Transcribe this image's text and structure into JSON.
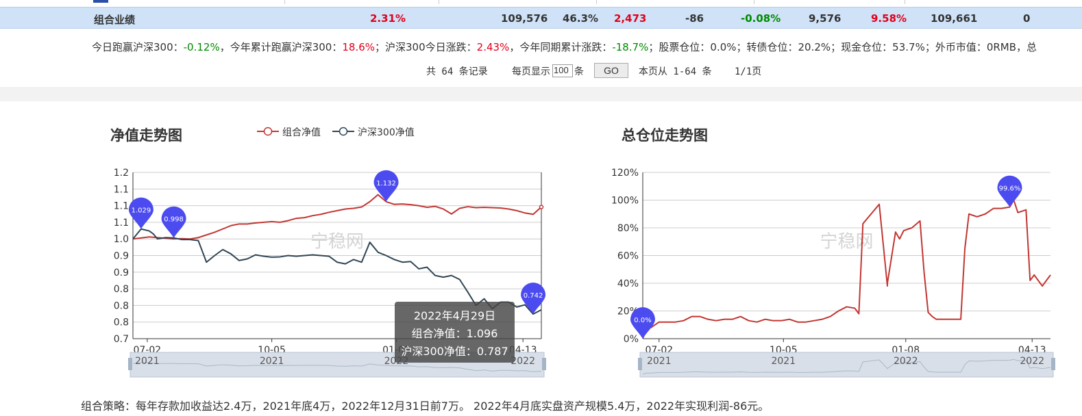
{
  "summary": {
    "label": "组合业绩",
    "cells": [
      {
        "text": "2.31%",
        "color": "red"
      },
      {
        "text": "109,576",
        "color": "dark"
      },
      {
        "text": "46.3%",
        "color": "dark"
      },
      {
        "text": "2,473",
        "color": "red"
      },
      {
        "text": "-86",
        "color": "dark"
      },
      {
        "text": "-0.08%",
        "color": "green"
      },
      {
        "text": "9,576",
        "color": "dark"
      },
      {
        "text": "9.58%",
        "color": "red"
      },
      {
        "text": "109,661",
        "color": "dark"
      },
      {
        "text": "0",
        "color": "dark"
      }
    ]
  },
  "info": {
    "p1": "今日跑赢沪深300：",
    "v1": "-0.12%",
    "p2": "，今年累计跑赢沪深300：",
    "v2": "18.6%",
    "p3": "；沪深300今日涨跌：",
    "v3": "2.43%",
    "p4": "，今年同期累计涨跌：",
    "v4": "-18.7%",
    "p5": "；股票仓位：0.0%；转债仓位：20.2%；现金仓位：53.7%；外币市值：0RMB，",
    "p6": "总"
  },
  "pager": {
    "total": "共 64 条记录",
    "per_page_label": "每页显示",
    "per_page_value": "100",
    "per_page_unit": "条",
    "go_label": "GO",
    "range": "本页从 1-64 条",
    "pages": "1/1页"
  },
  "nav_chart": {
    "title": "净值走势图",
    "legend": [
      "组合净值",
      "沪深300净值"
    ],
    "watermark": "宁稳网",
    "tooltip": {
      "date": "2022年4月29日",
      "line1": "组合净值：1.096",
      "line2": "沪深300净值：0.787"
    }
  },
  "pos_chart": {
    "title": "总仓位走势图",
    "watermark": "宁稳网"
  },
  "strategy": "组合策略：每年存款加收益达2.4万，2021年底4万，2022年12月31日前7万。 2022年4月底实盘资产规模5.4万，2022年实现利润-86元。",
  "colors": {
    "portfolio": "#c23531",
    "index": "#2f4554",
    "marker": "#4b4bf0",
    "position": "#c23531"
  },
  "chart_data": [
    {
      "type": "line",
      "title": "净值走势图",
      "ytick_labels": [
        "0.7",
        "0.8",
        "0.8",
        "0.8",
        "0.9",
        "0.9",
        "1.0",
        "1.1",
        "1.1",
        "1.1",
        "1.2"
      ],
      "ylim": [
        0.7,
        1.2
      ],
      "xtick_labels": [
        [
          "07-02",
          "2021"
        ],
        [
          "10-05",
          "2021"
        ],
        [
          "01-08",
          "2022"
        ],
        [
          "04-13",
          "2022"
        ]
      ],
      "x": [
        0,
        0.02,
        0.04,
        0.05,
        0.06,
        0.08,
        0.1,
        0.12,
        0.14,
        0.16,
        0.18,
        0.2,
        0.22,
        0.24,
        0.26,
        0.28,
        0.3,
        0.32,
        0.34,
        0.36,
        0.38,
        0.4,
        0.42,
        0.44,
        0.46,
        0.48,
        0.5,
        0.52,
        0.54,
        0.56,
        0.58,
        0.6,
        0.62,
        0.64,
        0.66,
        0.68,
        0.7,
        0.72,
        0.74,
        0.76,
        0.78,
        0.8,
        0.82,
        0.84,
        0.86,
        0.88,
        0.9,
        0.92,
        0.94,
        0.96,
        0.98,
        1.0
      ],
      "series": [
        {
          "name": "组合净值",
          "values": [
            1.0,
            1.003,
            1.006,
            1.005,
            1.004,
            1.002,
            1.0,
            1.001,
            1.0,
            1.004,
            1.012,
            1.02,
            1.03,
            1.04,
            1.045,
            1.045,
            1.048,
            1.05,
            1.052,
            1.05,
            1.055,
            1.062,
            1.064,
            1.07,
            1.074,
            1.08,
            1.085,
            1.09,
            1.092,
            1.096,
            1.112,
            1.133,
            1.112,
            1.104,
            1.105,
            1.103,
            1.1,
            1.095,
            1.098,
            1.09,
            1.075,
            1.092,
            1.097,
            1.094,
            1.095,
            1.094,
            1.093,
            1.09,
            1.085,
            1.078,
            1.074,
            1.096
          ]
        },
        {
          "name": "沪深300净值",
          "values": [
            1.0,
            1.03,
            1.024,
            1.015,
            1.0,
            1.004,
            1.003,
            0.998,
            0.998,
            0.995,
            0.93,
            0.95,
            0.968,
            0.955,
            0.935,
            0.94,
            0.952,
            0.948,
            0.945,
            0.946,
            0.95,
            0.948,
            0.95,
            0.952,
            0.95,
            0.948,
            0.93,
            0.925,
            0.938,
            0.93,
            0.99,
            0.96,
            0.95,
            0.938,
            0.93,
            0.932,
            0.91,
            0.915,
            0.89,
            0.885,
            0.89,
            0.878,
            0.84,
            0.8,
            0.82,
            0.79,
            0.81,
            0.81,
            0.795,
            0.802,
            0.774,
            0.787
          ]
        }
      ],
      "markers": [
        {
          "series": 0,
          "x": 0.62,
          "label": "1.132"
        },
        {
          "series": 1,
          "x": 0.02,
          "label": "1.029"
        },
        {
          "series": 1,
          "x": 0.1,
          "label": "0.998"
        },
        {
          "series": 1,
          "x": 0.98,
          "label": "0.742"
        }
      ]
    },
    {
      "type": "line",
      "title": "总仓位走势图",
      "ytick_labels": [
        "0%",
        "20%",
        "40%",
        "60%",
        "80%",
        "100%",
        "120%"
      ],
      "ylim": [
        0,
        120
      ],
      "xtick_labels": [
        [
          "07-02",
          "2021"
        ],
        [
          "10-05",
          "2021"
        ],
        [
          "01-08",
          "2022"
        ],
        [
          "04-13",
          "2022"
        ]
      ],
      "x": [
        0,
        0.01,
        0.02,
        0.04,
        0.06,
        0.08,
        0.1,
        0.12,
        0.14,
        0.16,
        0.18,
        0.2,
        0.22,
        0.24,
        0.26,
        0.28,
        0.3,
        0.32,
        0.34,
        0.36,
        0.38,
        0.4,
        0.42,
        0.44,
        0.46,
        0.48,
        0.5,
        0.52,
        0.53,
        0.54,
        0.56,
        0.58,
        0.6,
        0.6,
        0.62,
        0.63,
        0.64,
        0.66,
        0.68,
        0.69,
        0.7,
        0.71,
        0.72,
        0.74,
        0.76,
        0.78,
        0.79,
        0.8,
        0.82,
        0.84,
        0.86,
        0.88,
        0.9,
        0.91,
        0.92,
        0.94,
        0.95,
        0.96,
        0.98,
        1.0
      ],
      "series": [
        {
          "name": "",
          "values": [
            0,
            8,
            8,
            12,
            12,
            12,
            13,
            16,
            16,
            14,
            13,
            14,
            14,
            16,
            13,
            12,
            14,
            13,
            13,
            14,
            12,
            12,
            13,
            14,
            16,
            20,
            23,
            22,
            18,
            83,
            90,
            97,
            38,
            40,
            77,
            72,
            78,
            80,
            85,
            48,
            19,
            16,
            14,
            14,
            14,
            14,
            65,
            90,
            88,
            90,
            94,
            94,
            95,
            100,
            91,
            93,
            42,
            46,
            38,
            46
          ]
        }
      ],
      "markers": [
        {
          "series": 0,
          "x": 0.0,
          "label": "0.0%"
        },
        {
          "series": 0,
          "x": 0.9,
          "label": "99.6%"
        }
      ]
    }
  ]
}
